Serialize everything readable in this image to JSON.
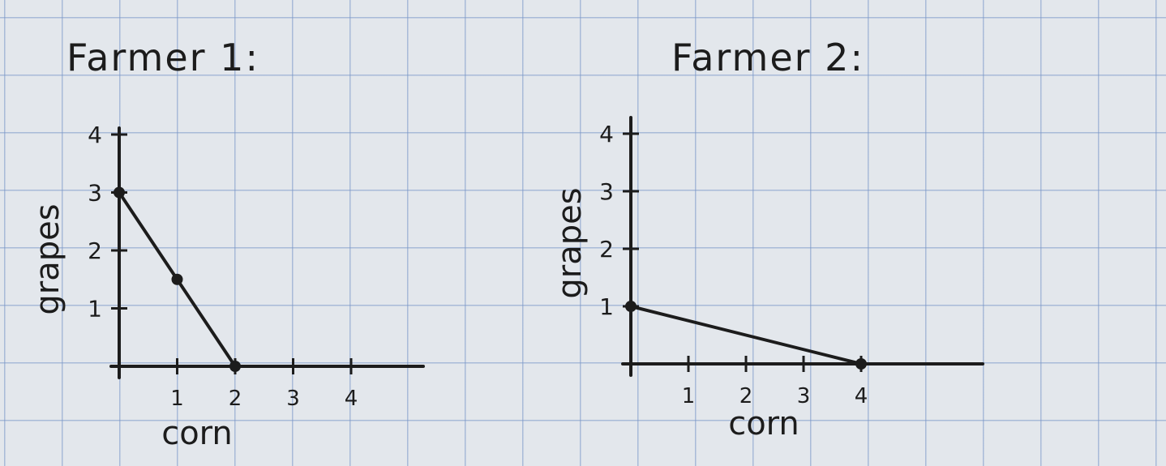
{
  "ink_color": "#1c1c1c",
  "chart_data": [
    {
      "type": "line",
      "title": "Farmer 1:",
      "xlabel": "corn",
      "ylabel": "grapes",
      "x_ticks": [
        "1",
        "2",
        "3",
        "4"
      ],
      "y_ticks": [
        "1",
        "2",
        "3",
        "4"
      ],
      "xlim": [
        0,
        5.2
      ],
      "ylim": [
        0,
        4
      ],
      "grid": false,
      "series": [
        {
          "points": [
            [
              0,
              3
            ],
            [
              1,
              1.5
            ],
            [
              2,
              0
            ]
          ]
        }
      ]
    },
    {
      "type": "line",
      "title": "Farmer 2:",
      "xlabel": "corn",
      "ylabel": "grapes",
      "x_ticks": [
        "1",
        "2",
        "3",
        "4"
      ],
      "y_ticks": [
        "1",
        "2",
        "3",
        "4"
      ],
      "xlim": [
        0,
        6.2
      ],
      "ylim": [
        0,
        4
      ],
      "grid": false,
      "series": [
        {
          "points": [
            [
              0,
              1
            ],
            [
              4,
              0
            ]
          ]
        }
      ]
    }
  ]
}
